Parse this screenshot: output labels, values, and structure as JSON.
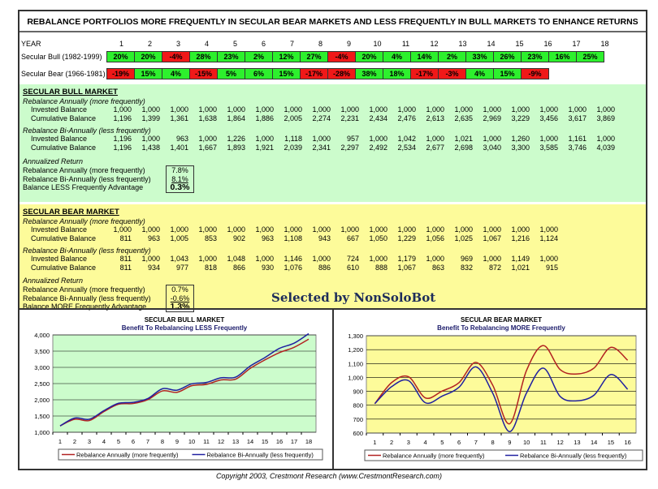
{
  "title": "REBALANCE PORTFOLIOS MORE FREQUENTLY IN SECULAR BEAR MARKETS AND LESS FREQUENTLY IN BULL MARKETS TO ENHANCE RETURNS",
  "year_label": "YEAR",
  "years": [
    "1",
    "2",
    "3",
    "4",
    "5",
    "6",
    "7",
    "8",
    "9",
    "10",
    "11",
    "12",
    "13",
    "14",
    "15",
    "16",
    "17",
    "18"
  ],
  "returns": {
    "bull": {
      "label": "Secular Bull (1982-1999)",
      "values": [
        "20%",
        "20%",
        "-4%",
        "28%",
        "23%",
        "2%",
        "12%",
        "27%",
        "-4%",
        "20%",
        "4%",
        "14%",
        "2%",
        "33%",
        "26%",
        "23%",
        "16%",
        "25%"
      ]
    },
    "bear": {
      "label": "Secular Bear (1966-1981)",
      "values": [
        "-19%",
        "15%",
        "4%",
        "-15%",
        "5%",
        "6%",
        "15%",
        "-17%",
        "-28%",
        "38%",
        "18%",
        "-17%",
        "-3%",
        "4%",
        "15%",
        "-9%"
      ]
    }
  },
  "colors": {
    "positive": "#2df02d",
    "negative": "#f01818",
    "bull_bg": "#ccfccc",
    "bear_bg": "#fdfb9a",
    "annual_line": "#b22222",
    "biannual_line": "#2020a0"
  },
  "bull": {
    "heading": "SECULAR BULL MARKET",
    "annual_label": "Rebalance Annually (more frequently)",
    "annual": {
      "invested_label": "Invested Balance",
      "invested": [
        "1,000",
        "1,000",
        "1,000",
        "1,000",
        "1,000",
        "1,000",
        "1,000",
        "1,000",
        "1,000",
        "1,000",
        "1,000",
        "1,000",
        "1,000",
        "1,000",
        "1,000",
        "1,000",
        "1,000",
        "1,000"
      ],
      "cumulative_label": "Cumulative Balance",
      "cumulative": [
        "1,196",
        "1,399",
        "1,361",
        "1,638",
        "1,864",
        "1,886",
        "2,005",
        "2,274",
        "2,231",
        "2,434",
        "2,476",
        "2,613",
        "2,635",
        "2,969",
        "3,229",
        "3,456",
        "3,617",
        "3,869"
      ]
    },
    "biannual_label": "Rebalance Bi-Annually (less frequently)",
    "biannual": {
      "invested_label": "Invested Balance",
      "invested": [
        "1,196",
        "1,000",
        "963",
        "1,000",
        "1,226",
        "1,000",
        "1,118",
        "1,000",
        "957",
        "1,000",
        "1,042",
        "1,000",
        "1,021",
        "1,000",
        "1,260",
        "1,000",
        "1,161",
        "1,000"
      ],
      "cumulative_label": "Cumulative Balance",
      "cumulative": [
        "1,196",
        "1,438",
        "1,401",
        "1,667",
        "1,893",
        "1,921",
        "2,039",
        "2,341",
        "2,297",
        "2,492",
        "2,534",
        "2,677",
        "2,698",
        "3,040",
        "3,300",
        "3,585",
        "3,746",
        "4,039"
      ]
    },
    "annualized": {
      "heading": "Annualized Return",
      "rows": [
        {
          "label": "Rebalance Annually (more frequently)",
          "value": "7.8%"
        },
        {
          "label": "Rebalance Bi-Annually (less frequently)",
          "value": "8.1%"
        },
        {
          "label": "Balance LESS Frequently Advantage",
          "value": "0.3%"
        }
      ]
    }
  },
  "bear": {
    "heading": "SECULAR BEAR MARKET",
    "annual_label": "Rebalance Annually (more frequently)",
    "annual": {
      "invested_label": "Invested Balance",
      "invested": [
        "1,000",
        "1,000",
        "1,000",
        "1,000",
        "1,000",
        "1,000",
        "1,000",
        "1,000",
        "1,000",
        "1,000",
        "1,000",
        "1,000",
        "1,000",
        "1,000",
        "1,000",
        "1,000"
      ],
      "cumulative_label": "Cumulative Balance",
      "cumulative": [
        "811",
        "963",
        "1,005",
        "853",
        "902",
        "963",
        "1,108",
        "943",
        "667",
        "1,050",
        "1,229",
        "1,056",
        "1,025",
        "1,067",
        "1,216",
        "1,124"
      ]
    },
    "biannual_label": "Rebalance Bi-Annually (less frequently)",
    "biannual": {
      "invested_label": "Invested Balance",
      "invested": [
        "811",
        "1,000",
        "1,043",
        "1,000",
        "1,048",
        "1,000",
        "1,146",
        "1,000",
        "724",
        "1,000",
        "1,179",
        "1,000",
        "969",
        "1,000",
        "1,149",
        "1,000"
      ],
      "cumulative_label": "Cumulative Balance",
      "cumulative": [
        "811",
        "934",
        "977",
        "818",
        "866",
        "930",
        "1,076",
        "886",
        "610",
        "888",
        "1,067",
        "863",
        "832",
        "872",
        "1,021",
        "915"
      ]
    },
    "annualized": {
      "heading": "Annualized Return",
      "rows": [
        {
          "label": "Rebalance Annually (more frequently)",
          "value": "0.7%"
        },
        {
          "label": "Rebalance Bi-Annually (less frequently)",
          "value": "-0.6%"
        },
        {
          "label": "Balance MORE Frequently Advantage",
          "value": "1.3%"
        }
      ]
    }
  },
  "watermark": "Selected by NonSoloBot",
  "copyright": "Copyright 2003, Crestmont Research (www.CrestmontResearch.com)",
  "chart_data": [
    {
      "type": "line",
      "title": "SECULAR BULL MARKET",
      "subtitle": "Benefit To Rebalancing LESS Frequently",
      "xlabel": "",
      "ylabel": "",
      "x": [
        1,
        2,
        3,
        4,
        5,
        6,
        7,
        8,
        9,
        10,
        11,
        12,
        13,
        14,
        15,
        16,
        17,
        18
      ],
      "ylim": [
        1000,
        4000
      ],
      "yticks": [
        "1,000",
        "1,500",
        "2,000",
        "2,500",
        "3,000",
        "3,500",
        "4,000"
      ],
      "ytick_values": [
        1000,
        1500,
        2000,
        2500,
        3000,
        3500,
        4000
      ],
      "grid": true,
      "legend": "bottom",
      "series": [
        {
          "name": "Rebalance Annually (more frequently)",
          "values": [
            1196,
            1399,
            1361,
            1638,
            1864,
            1886,
            2005,
            2274,
            2231,
            2434,
            2476,
            2613,
            2635,
            2969,
            3229,
            3456,
            3617,
            3869
          ]
        },
        {
          "name": "Rebalance Bi-Annually (less frequently)",
          "values": [
            1196,
            1438,
            1401,
            1667,
            1893,
            1921,
            2039,
            2341,
            2297,
            2492,
            2534,
            2677,
            2698,
            3040,
            3300,
            3585,
            3746,
            4039
          ]
        }
      ]
    },
    {
      "type": "line",
      "title": "SECULAR BEAR MARKET",
      "subtitle": "Benefit To Rebalancing MORE Frequently",
      "xlabel": "",
      "ylabel": "",
      "x": [
        1,
        2,
        3,
        4,
        5,
        6,
        7,
        8,
        9,
        10,
        11,
        12,
        13,
        14,
        15,
        16
      ],
      "ylim": [
        600,
        1300
      ],
      "yticks": [
        "600",
        "700",
        "800",
        "900",
        "1,000",
        "1,100",
        "1,200",
        "1,300"
      ],
      "ytick_values": [
        600,
        700,
        800,
        900,
        1000,
        1100,
        1200,
        1300
      ],
      "grid": true,
      "legend": "bottom",
      "series": [
        {
          "name": "Rebalance Annually (more frequently)",
          "values": [
            811,
            963,
            1005,
            853,
            902,
            963,
            1108,
            943,
            667,
            1050,
            1229,
            1056,
            1025,
            1067,
            1216,
            1124
          ]
        },
        {
          "name": "Rebalance Bi-Annually (less frequently)",
          "values": [
            811,
            934,
            977,
            818,
            866,
            930,
            1076,
            886,
            610,
            888,
            1067,
            863,
            832,
            872,
            1021,
            915
          ]
        }
      ]
    }
  ]
}
